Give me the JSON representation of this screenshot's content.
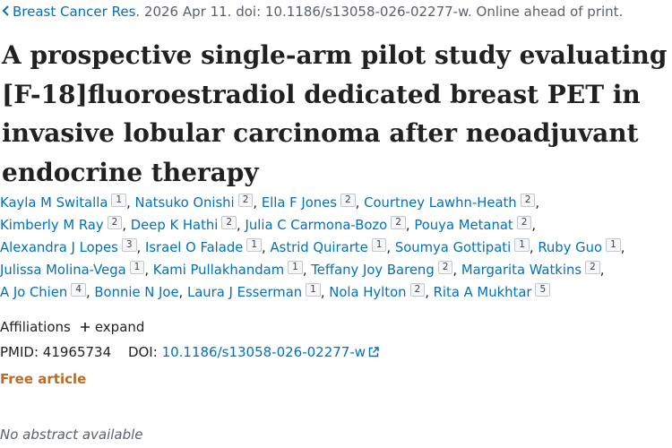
{
  "citation": {
    "journal": "Breast Cancer Res.",
    "details": " 2026 Apr 11. doi: 10.1186/s13058-026-02277-w. Online ahead of print."
  },
  "title": "A prospective single-arm pilot study evaluating [F-18]fluoroestradiol dedicated breast PET in invasive lobular carcinoma after neoadjuvant endocrine therapy",
  "authors": [
    {
      "name": "Kayla M Switalla",
      "aff": "1"
    },
    {
      "name": "Natsuko Onishi",
      "aff": "2"
    },
    {
      "name": "Ella F Jones",
      "aff": "2"
    },
    {
      "name": "Courtney Lawhn-Heath",
      "aff": "2"
    },
    {
      "name": "Kimberly M Ray",
      "aff": "2"
    },
    {
      "name": "Deep K Hathi",
      "aff": "2"
    },
    {
      "name": "Julia C Carmona-Bozo",
      "aff": "2"
    },
    {
      "name": "Pouya Metanat",
      "aff": "2"
    },
    {
      "name": "Alexandra J Lopes",
      "aff": "3"
    },
    {
      "name": "Israel O Falade",
      "aff": "1"
    },
    {
      "name": "Astrid Quirarte",
      "aff": "1"
    },
    {
      "name": "Soumya Gottipati",
      "aff": "1"
    },
    {
      "name": "Ruby Guo",
      "aff": "1"
    },
    {
      "name": "Julissa Molina-Vega",
      "aff": "1"
    },
    {
      "name": "Kami Pullakhandam",
      "aff": "1"
    },
    {
      "name": "Teffany Joy Bareng",
      "aff": "2"
    },
    {
      "name": "Margarita Watkins",
      "aff": "2"
    },
    {
      "name": "A Jo Chien",
      "aff": "4"
    },
    {
      "name": "Bonnie N Joe",
      "aff": ""
    },
    {
      "name": "Laura J Esserman",
      "aff": "1"
    },
    {
      "name": "Nola Hylton",
      "aff": "2"
    },
    {
      "name": "Rita A Mukhtar",
      "aff": "5"
    }
  ],
  "affiliations": {
    "label": "Affiliations",
    "expand_label": "expand"
  },
  "identifiers": {
    "pmid_label": "PMID:",
    "pmid": "41965734",
    "doi_label": "DOI:",
    "doi": "10.1186/s13058-026-02277-w"
  },
  "free_article": "Free article",
  "abstract_status": "No abstract available",
  "colors": {
    "link": "#0071bc",
    "free_article": "#bc6c25",
    "text": "#212121",
    "muted": "#5b616b"
  },
  "icons": [
    "chevron-left-icon",
    "plus-icon",
    "external-link-icon"
  ]
}
